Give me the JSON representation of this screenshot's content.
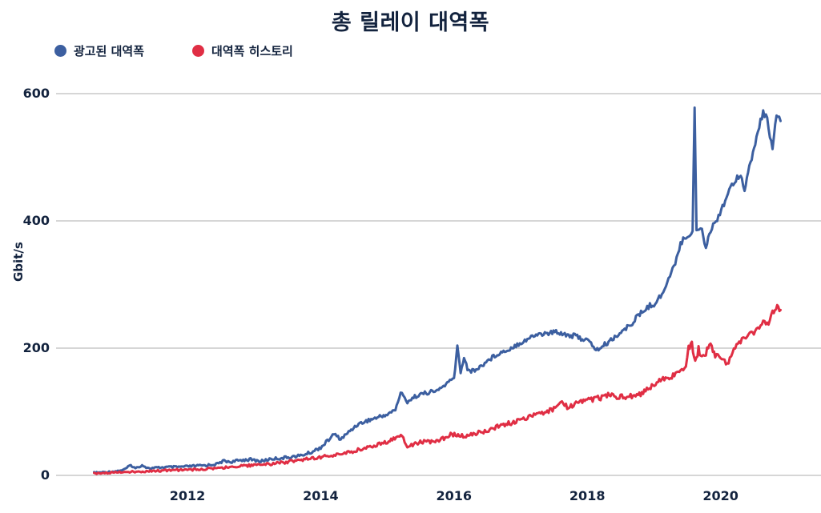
{
  "chart_data": {
    "type": "line",
    "title": "총 릴레이 대역폭",
    "xlabel": "",
    "ylabel": "Gbit/s",
    "ylim": [
      0,
      600
    ],
    "xlim": [
      2010.6,
      2020.92
    ],
    "y_ticks": [
      "0",
      "200",
      "400",
      "600"
    ],
    "y_tick_values": [
      0,
      200,
      400,
      600
    ],
    "x_ticks": [
      "2012",
      "2014",
      "2016",
      "2018",
      "2020"
    ],
    "x_tick_values": [
      2012,
      2014,
      2016,
      2018,
      2020
    ],
    "grid": "horizontal",
    "gridline_color": "#d6d6d6",
    "text_color": "#13233e",
    "legend_position": "top-left",
    "series": [
      {
        "name": "광고된 대역폭",
        "color": "#3c5fa0",
        "points": [
          [
            2010.6,
            4
          ],
          [
            2010.75,
            5
          ],
          [
            2010.9,
            6
          ],
          [
            2011.05,
            9
          ],
          [
            2011.15,
            16
          ],
          [
            2011.22,
            11
          ],
          [
            2011.32,
            16
          ],
          [
            2011.42,
            11
          ],
          [
            2011.55,
            12
          ],
          [
            2011.7,
            13
          ],
          [
            2011.85,
            13
          ],
          [
            2012.0,
            14
          ],
          [
            2012.15,
            15
          ],
          [
            2012.3,
            16
          ],
          [
            2012.45,
            18
          ],
          [
            2012.55,
            23
          ],
          [
            2012.65,
            21
          ],
          [
            2012.8,
            24
          ],
          [
            2012.95,
            25
          ],
          [
            2013.1,
            22
          ],
          [
            2013.25,
            26
          ],
          [
            2013.4,
            27
          ],
          [
            2013.55,
            29
          ],
          [
            2013.7,
            31
          ],
          [
            2013.85,
            36
          ],
          [
            2014.0,
            44
          ],
          [
            2014.1,
            54
          ],
          [
            2014.2,
            65
          ],
          [
            2014.3,
            57
          ],
          [
            2014.42,
            68
          ],
          [
            2014.55,
            80
          ],
          [
            2014.7,
            86
          ],
          [
            2014.85,
            91
          ],
          [
            2015.0,
            96
          ],
          [
            2015.12,
            103
          ],
          [
            2015.2,
            130
          ],
          [
            2015.3,
            116
          ],
          [
            2015.45,
            126
          ],
          [
            2015.6,
            130
          ],
          [
            2015.75,
            133
          ],
          [
            2015.9,
            145
          ],
          [
            2016.0,
            152
          ],
          [
            2016.05,
            203
          ],
          [
            2016.1,
            162
          ],
          [
            2016.15,
            186
          ],
          [
            2016.22,
            163
          ],
          [
            2016.35,
            167
          ],
          [
            2016.5,
            180
          ],
          [
            2016.65,
            191
          ],
          [
            2016.8,
            197
          ],
          [
            2016.95,
            206
          ],
          [
            2017.1,
            214
          ],
          [
            2017.25,
            222
          ],
          [
            2017.4,
            223
          ],
          [
            2017.55,
            226
          ],
          [
            2017.7,
            221
          ],
          [
            2017.85,
            218
          ],
          [
            2018.0,
            212
          ],
          [
            2018.15,
            197
          ],
          [
            2018.3,
            208
          ],
          [
            2018.45,
            221
          ],
          [
            2018.6,
            232
          ],
          [
            2018.75,
            249
          ],
          [
            2018.9,
            264
          ],
          [
            2019.0,
            270
          ],
          [
            2019.1,
            281
          ],
          [
            2019.2,
            303
          ],
          [
            2019.3,
            328
          ],
          [
            2019.4,
            365
          ],
          [
            2019.5,
            376
          ],
          [
            2019.58,
            384
          ],
          [
            2019.61,
            578
          ],
          [
            2019.64,
            383
          ],
          [
            2019.7,
            391
          ],
          [
            2019.78,
            360
          ],
          [
            2019.85,
            386
          ],
          [
            2019.95,
            404
          ],
          [
            2020.05,
            428
          ],
          [
            2020.15,
            452
          ],
          [
            2020.25,
            470
          ],
          [
            2020.32,
            471
          ],
          [
            2020.36,
            446
          ],
          [
            2020.45,
            492
          ],
          [
            2020.52,
            522
          ],
          [
            2020.58,
            548
          ],
          [
            2020.64,
            572
          ],
          [
            2020.7,
            558
          ],
          [
            2020.78,
            514
          ],
          [
            2020.84,
            564
          ],
          [
            2020.9,
            557
          ]
        ]
      },
      {
        "name": "대역폭 히스토리",
        "color": "#e02e44",
        "points": [
          [
            2010.6,
            3
          ],
          [
            2010.8,
            4
          ],
          [
            2011.0,
            5
          ],
          [
            2011.25,
            6
          ],
          [
            2011.5,
            7
          ],
          [
            2011.75,
            8
          ],
          [
            2012.0,
            9
          ],
          [
            2012.25,
            10
          ],
          [
            2012.5,
            12
          ],
          [
            2012.75,
            14
          ],
          [
            2013.0,
            16
          ],
          [
            2013.25,
            18
          ],
          [
            2013.5,
            21
          ],
          [
            2013.75,
            25
          ],
          [
            2014.0,
            29
          ],
          [
            2014.2,
            32
          ],
          [
            2014.4,
            36
          ],
          [
            2014.6,
            41
          ],
          [
            2014.8,
            47
          ],
          [
            2015.0,
            53
          ],
          [
            2015.15,
            60
          ],
          [
            2015.22,
            64
          ],
          [
            2015.3,
            44
          ],
          [
            2015.42,
            50
          ],
          [
            2015.55,
            53
          ],
          [
            2015.7,
            54
          ],
          [
            2015.85,
            58
          ],
          [
            2015.95,
            65
          ],
          [
            2016.08,
            63
          ],
          [
            2016.18,
            61
          ],
          [
            2016.35,
            66
          ],
          [
            2016.5,
            71
          ],
          [
            2016.65,
            77
          ],
          [
            2016.8,
            81
          ],
          [
            2016.95,
            85
          ],
          [
            2017.1,
            91
          ],
          [
            2017.3,
            97
          ],
          [
            2017.5,
            104
          ],
          [
            2017.6,
            115
          ],
          [
            2017.72,
            106
          ],
          [
            2017.85,
            114
          ],
          [
            2018.0,
            118
          ],
          [
            2018.2,
            122
          ],
          [
            2018.35,
            127
          ],
          [
            2018.5,
            123
          ],
          [
            2018.65,
            124
          ],
          [
            2018.8,
            128
          ],
          [
            2018.95,
            140
          ],
          [
            2019.1,
            149
          ],
          [
            2019.25,
            154
          ],
          [
            2019.4,
            161
          ],
          [
            2019.48,
            170
          ],
          [
            2019.52,
            200
          ],
          [
            2019.57,
            207
          ],
          [
            2019.62,
            176
          ],
          [
            2019.67,
            199
          ],
          [
            2019.72,
            184
          ],
          [
            2019.78,
            193
          ],
          [
            2019.85,
            206
          ],
          [
            2019.92,
            188
          ],
          [
            2020.0,
            184
          ],
          [
            2020.1,
            176
          ],
          [
            2020.2,
            200
          ],
          [
            2020.3,
            212
          ],
          [
            2020.42,
            220
          ],
          [
            2020.5,
            224
          ],
          [
            2020.58,
            235
          ],
          [
            2020.64,
            243
          ],
          [
            2020.7,
            237
          ],
          [
            2020.78,
            254
          ],
          [
            2020.85,
            263
          ],
          [
            2020.9,
            260
          ]
        ]
      }
    ]
  },
  "legend": {
    "items": [
      {
        "label": "광고된 대역폭",
        "color": "#3c5fa0"
      },
      {
        "label": "대역폭 히스토리",
        "color": "#e02e44"
      }
    ]
  }
}
